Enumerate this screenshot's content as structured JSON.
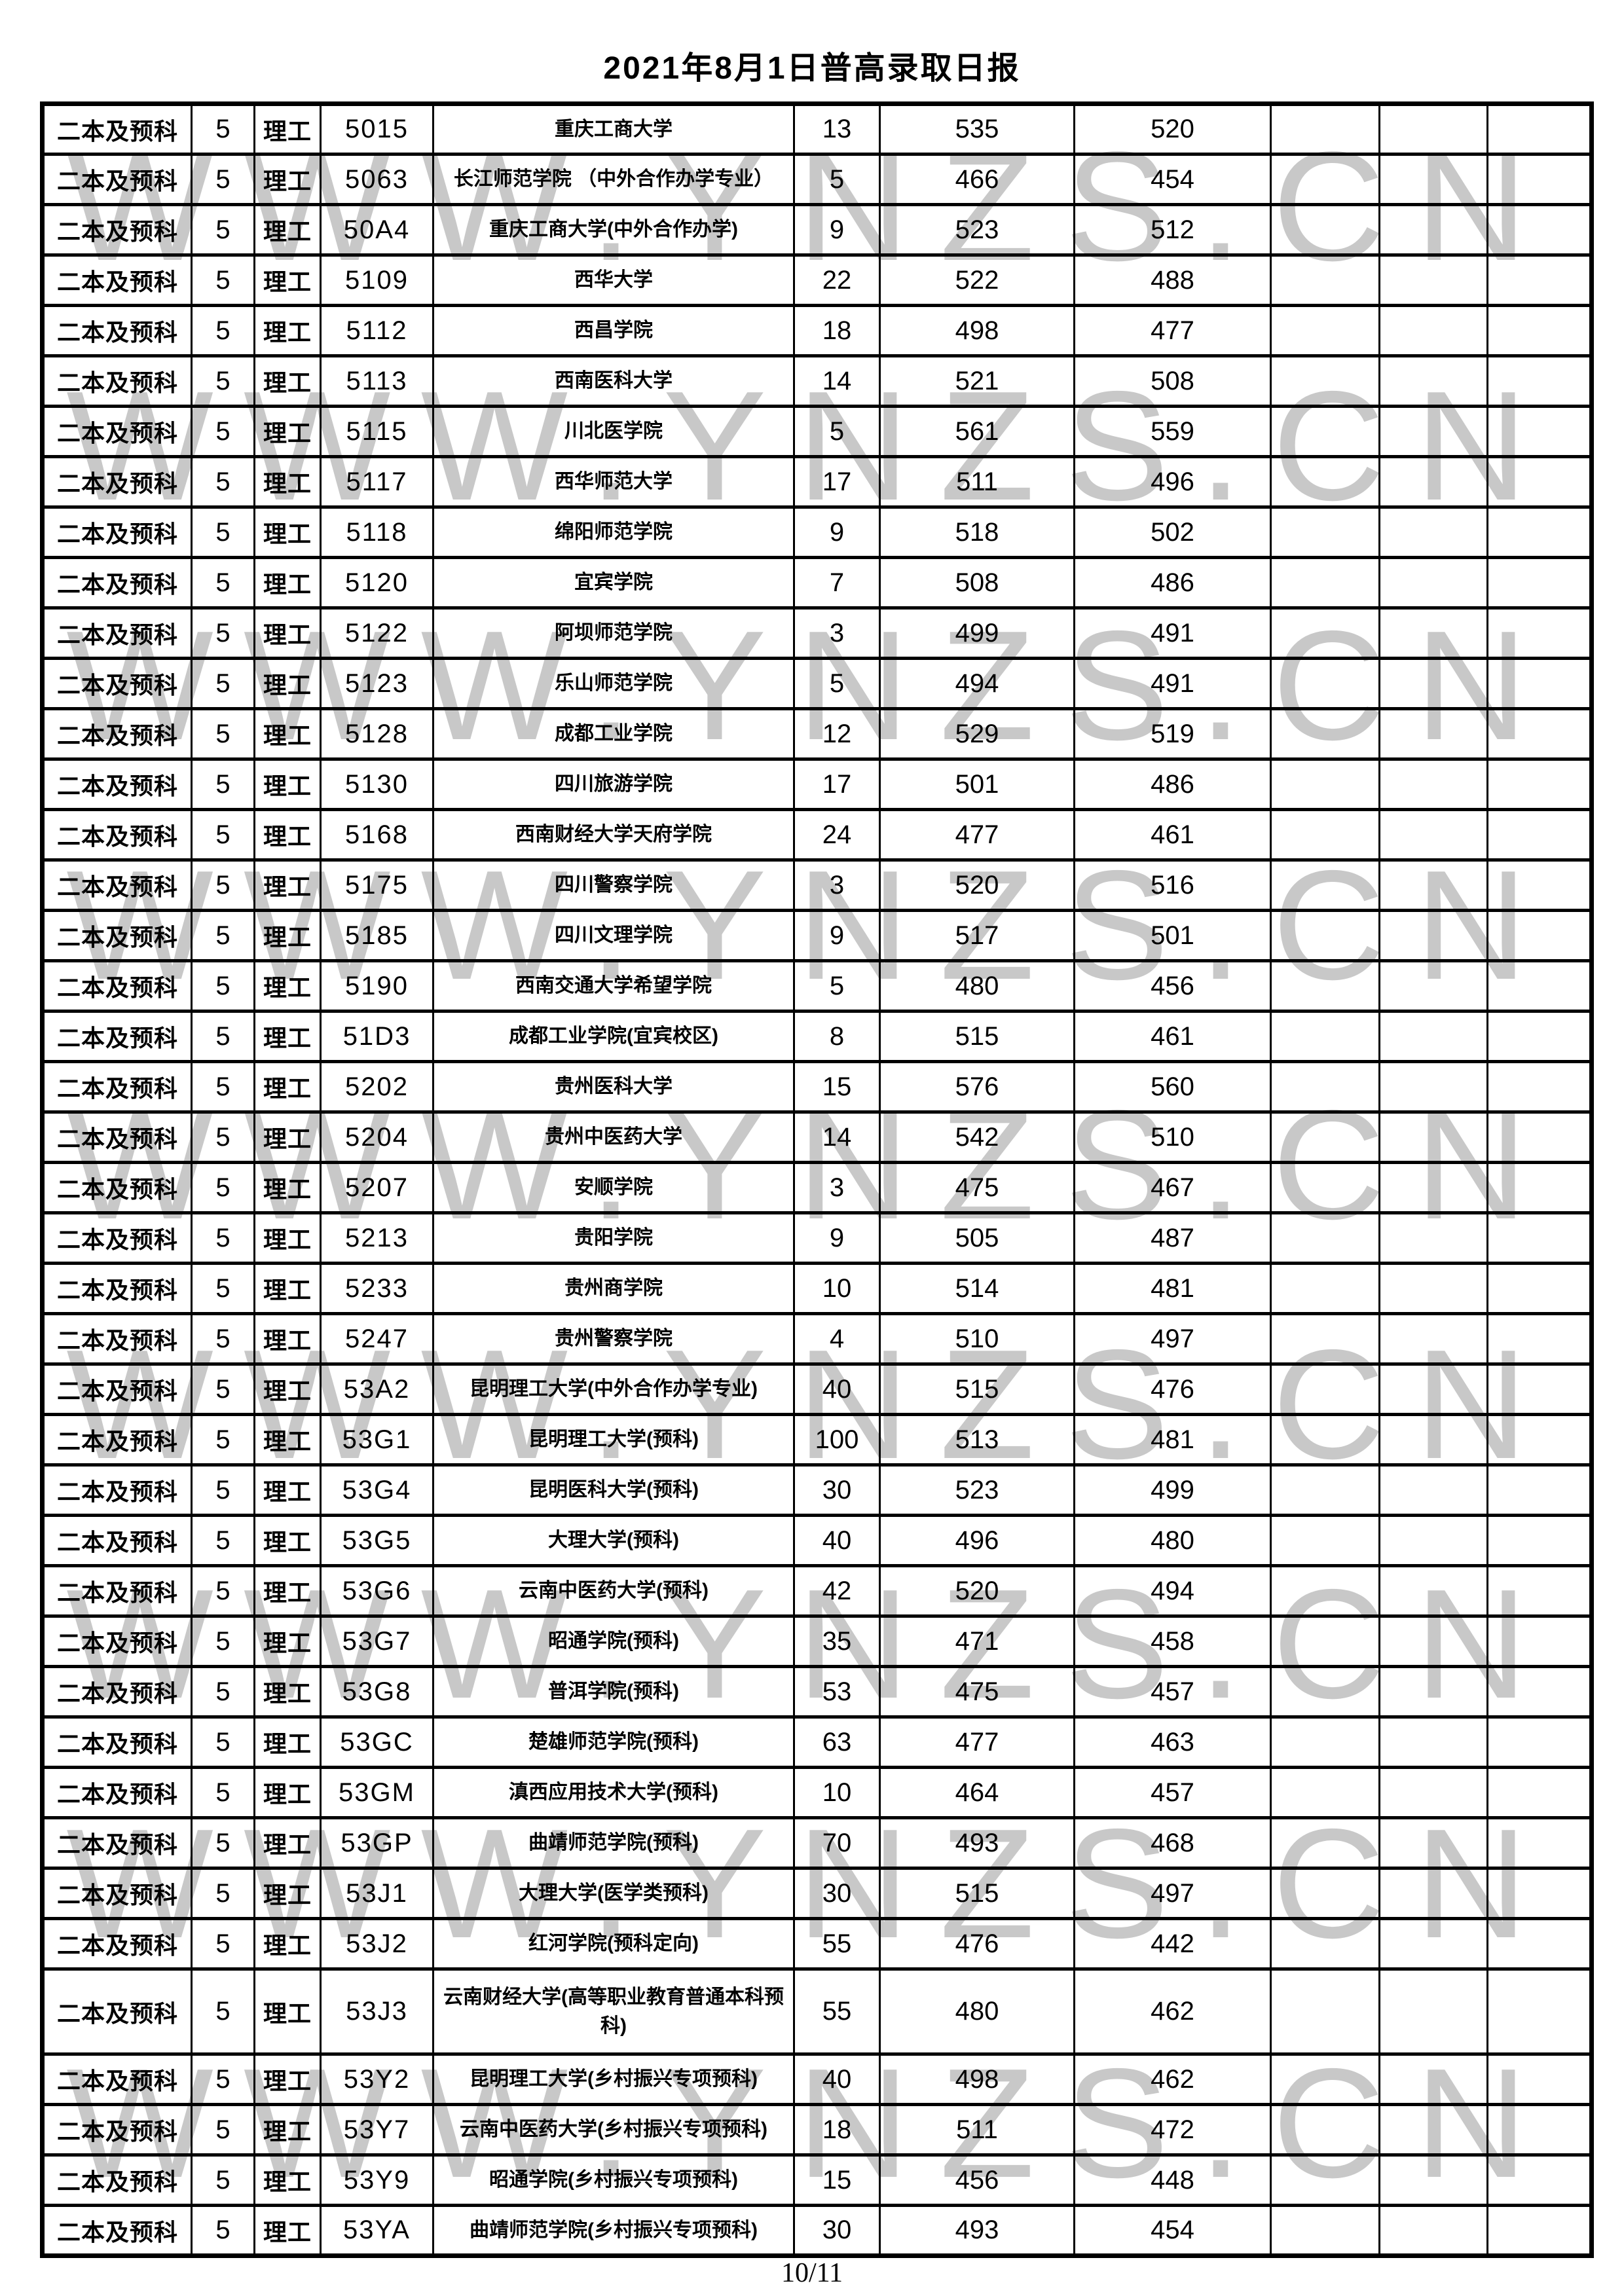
{
  "page": {
    "title": "2021年8月1日普高录取日报",
    "footer": "10/11"
  },
  "colors": {
    "text": "#000000",
    "border": "#000000",
    "background": "#ffffff",
    "watermark": "#c8c8c8"
  },
  "watermark": {
    "text": "WWW.YNZS.CN",
    "band_centers_y": [
      316,
      682,
      1048,
      1414,
      1780,
      2146,
      2512,
      2878,
      3244
    ]
  },
  "table": {
    "columns": [
      "batch",
      "plan",
      "track",
      "code",
      "name",
      "qty",
      "high",
      "low",
      "e1",
      "e2",
      "e3"
    ],
    "repeated": {
      "batch": "二本及预科",
      "plan": "5",
      "track": "理工",
      "e1": "",
      "e2": "",
      "e3": ""
    },
    "rows": [
      {
        "code": "5015",
        "name": "重庆工商大学",
        "qty": "13",
        "high": "535",
        "low": "520"
      },
      {
        "code": "5063",
        "name": "长江师范学院 （中外合作办学专业）",
        "qty": "5",
        "high": "466",
        "low": "454"
      },
      {
        "code": "50A4",
        "name": "重庆工商大学(中外合作办学)",
        "qty": "9",
        "high": "523",
        "low": "512"
      },
      {
        "code": "5109",
        "name": "西华大学",
        "qty": "22",
        "high": "522",
        "low": "488"
      },
      {
        "code": "5112",
        "name": "西昌学院",
        "qty": "18",
        "high": "498",
        "low": "477"
      },
      {
        "code": "5113",
        "name": "西南医科大学",
        "qty": "14",
        "high": "521",
        "low": "508"
      },
      {
        "code": "5115",
        "name": "川北医学院",
        "qty": "5",
        "high": "561",
        "low": "559"
      },
      {
        "code": "5117",
        "name": "西华师范大学",
        "qty": "17",
        "high": "511",
        "low": "496"
      },
      {
        "code": "5118",
        "name": "绵阳师范学院",
        "qty": "9",
        "high": "518",
        "low": "502"
      },
      {
        "code": "5120",
        "name": "宜宾学院",
        "qty": "7",
        "high": "508",
        "low": "486"
      },
      {
        "code": "5122",
        "name": "阿坝师范学院",
        "qty": "3",
        "high": "499",
        "low": "491"
      },
      {
        "code": "5123",
        "name": "乐山师范学院",
        "qty": "5",
        "high": "494",
        "low": "491"
      },
      {
        "code": "5128",
        "name": "成都工业学院",
        "qty": "12",
        "high": "529",
        "low": "519"
      },
      {
        "code": "5130",
        "name": "四川旅游学院",
        "qty": "17",
        "high": "501",
        "low": "486"
      },
      {
        "code": "5168",
        "name": "西南财经大学天府学院",
        "qty": "24",
        "high": "477",
        "low": "461"
      },
      {
        "code": "5175",
        "name": "四川警察学院",
        "qty": "3",
        "high": "520",
        "low": "516"
      },
      {
        "code": "5185",
        "name": "四川文理学院",
        "qty": "9",
        "high": "517",
        "low": "501"
      },
      {
        "code": "5190",
        "name": "西南交通大学希望学院",
        "qty": "5",
        "high": "480",
        "low": "456"
      },
      {
        "code": "51D3",
        "name": "成都工业学院(宜宾校区)",
        "qty": "8",
        "high": "515",
        "low": "461"
      },
      {
        "code": "5202",
        "name": "贵州医科大学",
        "qty": "15",
        "high": "576",
        "low": "560"
      },
      {
        "code": "5204",
        "name": "贵州中医药大学",
        "qty": "14",
        "high": "542",
        "low": "510"
      },
      {
        "code": "5207",
        "name": "安顺学院",
        "qty": "3",
        "high": "475",
        "low": "467"
      },
      {
        "code": "5213",
        "name": "贵阳学院",
        "qty": "9",
        "high": "505",
        "low": "487"
      },
      {
        "code": "5233",
        "name": "贵州商学院",
        "qty": "10",
        "high": "514",
        "low": "481"
      },
      {
        "code": "5247",
        "name": "贵州警察学院",
        "qty": "4",
        "high": "510",
        "low": "497"
      },
      {
        "code": "53A2",
        "name": "昆明理工大学(中外合作办学专业)",
        "qty": "40",
        "high": "515",
        "low": "476"
      },
      {
        "code": "53G1",
        "name": "昆明理工大学(预科)",
        "qty": "100",
        "high": "513",
        "low": "481"
      },
      {
        "code": "53G4",
        "name": "昆明医科大学(预科)",
        "qty": "30",
        "high": "523",
        "low": "499"
      },
      {
        "code": "53G5",
        "name": "大理大学(预科)",
        "qty": "40",
        "high": "496",
        "low": "480"
      },
      {
        "code": "53G6",
        "name": "云南中医药大学(预科)",
        "qty": "42",
        "high": "520",
        "low": "494"
      },
      {
        "code": "53G7",
        "name": "昭通学院(预科)",
        "qty": "35",
        "high": "471",
        "low": "458"
      },
      {
        "code": "53G8",
        "name": "普洱学院(预科)",
        "qty": "53",
        "high": "475",
        "low": "457"
      },
      {
        "code": "53GC",
        "name": "楚雄师范学院(预科)",
        "qty": "63",
        "high": "477",
        "low": "463"
      },
      {
        "code": "53GM",
        "name": "滇西应用技术大学(预科)",
        "qty": "10",
        "high": "464",
        "low": "457"
      },
      {
        "code": "53GP",
        "name": "曲靖师范学院(预科)",
        "qty": "70",
        "high": "493",
        "low": "468"
      },
      {
        "code": "53J1",
        "name": "大理大学(医学类预科)",
        "qty": "30",
        "high": "515",
        "low": "497"
      },
      {
        "code": "53J2",
        "name": "红河学院(预科定向)",
        "qty": "55",
        "high": "476",
        "low": "442"
      },
      {
        "code": "53J3",
        "name": "云南财经大学(高等职业教育普通本科预科)",
        "qty": "55",
        "high": "480",
        "low": "462",
        "tall": true
      },
      {
        "code": "53Y2",
        "name": "昆明理工大学(乡村振兴专项预科)",
        "qty": "40",
        "high": "498",
        "low": "462"
      },
      {
        "code": "53Y7",
        "name": "云南中医药大学(乡村振兴专项预科)",
        "qty": "18",
        "high": "511",
        "low": "472"
      },
      {
        "code": "53Y9",
        "name": "昭通学院(乡村振兴专项预科)",
        "qty": "15",
        "high": "456",
        "low": "448"
      },
      {
        "code": "53YA",
        "name": "曲靖师范学院(乡村振兴专项预科)",
        "qty": "30",
        "high": "493",
        "low": "454"
      }
    ]
  }
}
